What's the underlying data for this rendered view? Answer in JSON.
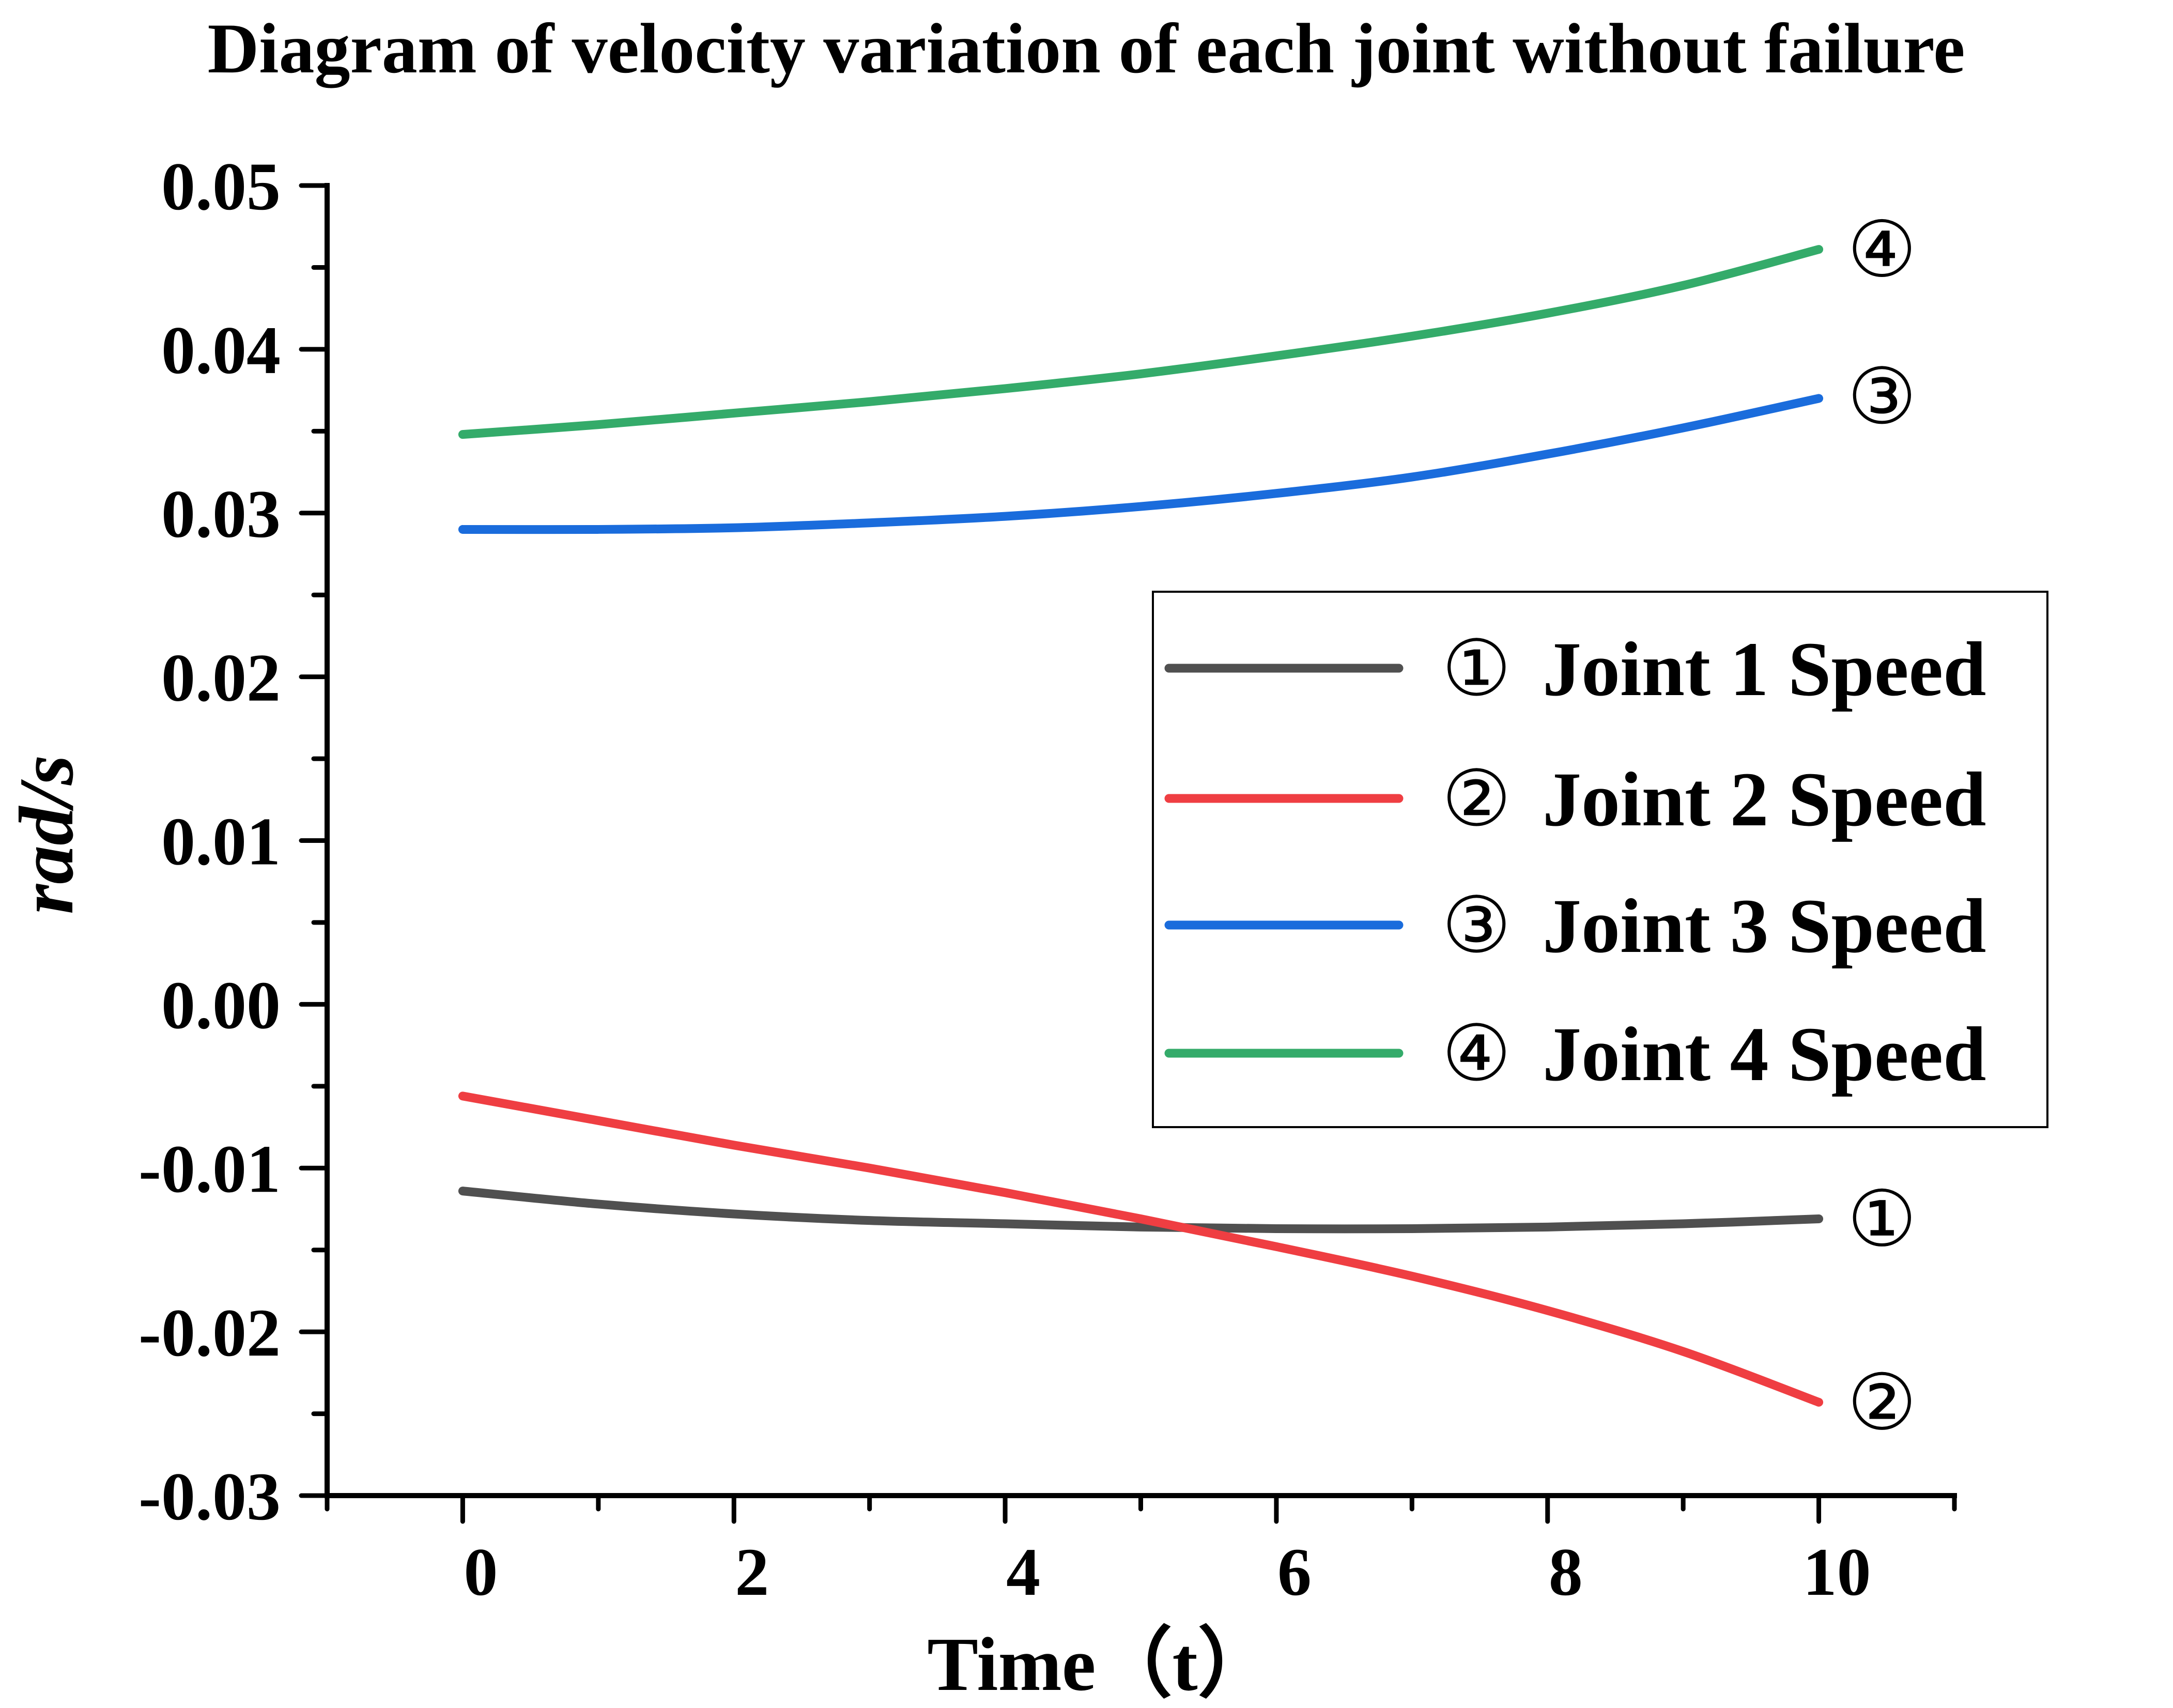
{
  "chart_data": {
    "type": "line",
    "title": "Diagram of velocity variation of each joint without failure",
    "xlabel": "Time（t）",
    "ylabel": "rad/s",
    "xlim": [
      -1,
      11
    ],
    "ylim": [
      -0.03,
      0.05
    ],
    "x_ticks": [
      0,
      2,
      4,
      6,
      8,
      10
    ],
    "x_tick_labels": [
      "0",
      "2",
      "4",
      "6",
      "8",
      "10"
    ],
    "x_minor_ticks": [
      -1,
      1,
      3,
      5,
      7,
      9,
      11
    ],
    "y_ticks": [
      0.05,
      0.04,
      0.03,
      0.02,
      0.01,
      0.0,
      -0.01,
      -0.02,
      -0.03
    ],
    "y_tick_labels": [
      "0.05",
      "0.04",
      "0.03",
      "0.02",
      "0.01",
      "0.00",
      "-0.01",
      "-0.02",
      "-0.03"
    ],
    "y_minor_ticks": [
      0.045,
      0.035,
      0.025,
      0.015,
      0.005,
      -0.005,
      -0.015,
      -0.025
    ],
    "grid": false,
    "legend_position": "right-middle",
    "x": [
      0,
      1,
      2,
      3,
      4,
      5,
      6,
      7,
      8,
      9,
      10
    ],
    "series": [
      {
        "name": "Joint 1 Speed",
        "marker": "①",
        "color": "#505050",
        "values": [
          -0.0114,
          -0.0122,
          -0.0128,
          -0.0132,
          -0.0134,
          -0.0136,
          -0.0137,
          -0.0137,
          -0.0136,
          -0.0134,
          -0.0131
        ]
      },
      {
        "name": "Joint 2 Speed",
        "marker": "②",
        "color": "#EF3E42",
        "values": [
          -0.0056,
          -0.0071,
          -0.0086,
          -0.01,
          -0.0115,
          -0.0131,
          -0.0148,
          -0.0166,
          -0.0187,
          -0.0212,
          -0.0243
        ]
      },
      {
        "name": "Joint 3 Speed",
        "marker": "③",
        "color": "#1A6CDC",
        "values": [
          0.029,
          0.029,
          0.0291,
          0.0294,
          0.0298,
          0.0304,
          0.0312,
          0.0322,
          0.0336,
          0.0352,
          0.037
        ]
      },
      {
        "name": "Joint 4 Speed",
        "marker": "④",
        "color": "#34AB6A",
        "values": [
          0.0348,
          0.0354,
          0.0361,
          0.0368,
          0.0376,
          0.0385,
          0.0396,
          0.0408,
          0.0422,
          0.0439,
          0.0461
        ]
      }
    ]
  }
}
